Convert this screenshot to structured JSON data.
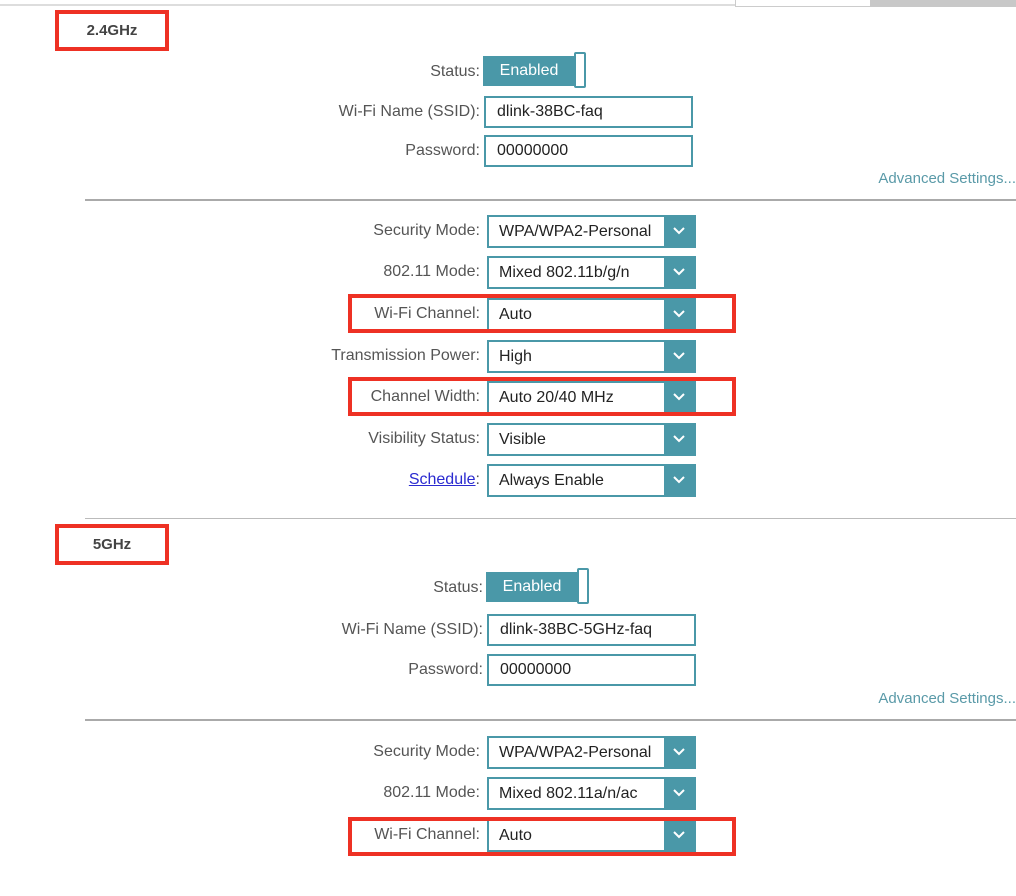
{
  "sections": [
    {
      "band": "2.4GHz",
      "status_label": "Status:",
      "status_value": "Enabled",
      "ssid_label": "Wi-Fi Name (SSID):",
      "ssid": "dlink-38BC-faq",
      "password_label": "Password:",
      "password": "00000000",
      "advanced": "Advanced Settings...",
      "selects": [
        {
          "label": "Security Mode:",
          "value": "WPA/WPA2-Personal"
        },
        {
          "label": "802.11 Mode:",
          "value": "Mixed 802.11b/g/n"
        },
        {
          "label": "Wi-Fi Channel:",
          "value": "Auto"
        },
        {
          "label": "Transmission Power:",
          "value": "High"
        },
        {
          "label": "Channel Width:",
          "value": "Auto 20/40 MHz"
        },
        {
          "label": "Visibility Status:",
          "value": "Visible"
        },
        {
          "label": "Schedule",
          "value": "Always Enable"
        }
      ]
    },
    {
      "band": "5GHz",
      "status_label": "Status:",
      "status_value": "Enabled",
      "ssid_label": "Wi-Fi Name (SSID):",
      "ssid": "dlink-38BC-5GHz-faq",
      "password_label": "Password:",
      "password": "00000000",
      "advanced": "Advanced Settings...",
      "selects": [
        {
          "label": "Security Mode:",
          "value": "WPA/WPA2-Personal"
        },
        {
          "label": "802.11 Mode:",
          "value": "Mixed 802.11a/n/ac"
        },
        {
          "label": "Wi-Fi Channel:",
          "value": "Auto"
        }
      ]
    }
  ],
  "colors": {
    "accent": "#4a98a8",
    "highlight": "#ee3124"
  },
  "icons": {
    "select_arrow": "chevron-down-icon"
  }
}
